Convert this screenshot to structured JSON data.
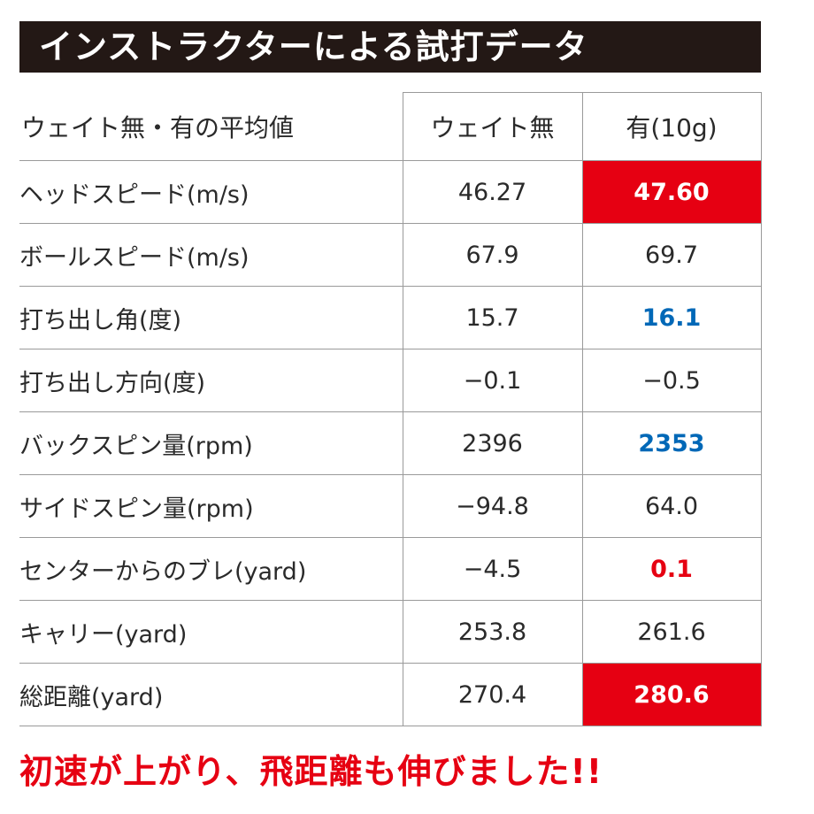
{
  "title": "インストラクターによる試打データ",
  "table": {
    "header": {
      "label": "ウェイト無・有の平均値",
      "col_a": "ウェイト無",
      "col_b": "有(10g)"
    },
    "rows": [
      {
        "label": "ヘッドスピード(m/s)",
        "a": "46.27",
        "b": "47.60",
        "b_style": "red-bg"
      },
      {
        "label": "ボールスピード(m/s)",
        "a": "67.9",
        "b": "69.7",
        "b_style": ""
      },
      {
        "label": "打ち出し角(度)",
        "a": "15.7",
        "b": "16.1",
        "b_style": "blue"
      },
      {
        "label": "打ち出し方向(度)",
        "a": "−0.1",
        "b": "−0.5",
        "b_style": ""
      },
      {
        "label": "バックスピン量(rpm)",
        "a": "2396",
        "b": "2353",
        "b_style": "blue"
      },
      {
        "label": "サイドスピン量(rpm)",
        "a": "−94.8",
        "b": "64.0",
        "b_style": ""
      },
      {
        "label": "センターからのブレ(yard)",
        "a": "−4.5",
        "b": "0.1",
        "b_style": "red"
      },
      {
        "label": "キャリー(yard)",
        "a": "253.8",
        "b": "261.6",
        "b_style": ""
      },
      {
        "label": "総距離(yard)",
        "a": "270.4",
        "b": "280.6",
        "b_style": "red-bg"
      }
    ]
  },
  "footer": "初速が上がり、飛距離も伸びました!!",
  "colors": {
    "title_bg": "#231815",
    "accent_red": "#e60012",
    "accent_blue": "#0068b7",
    "border": "#9a9a9a"
  }
}
